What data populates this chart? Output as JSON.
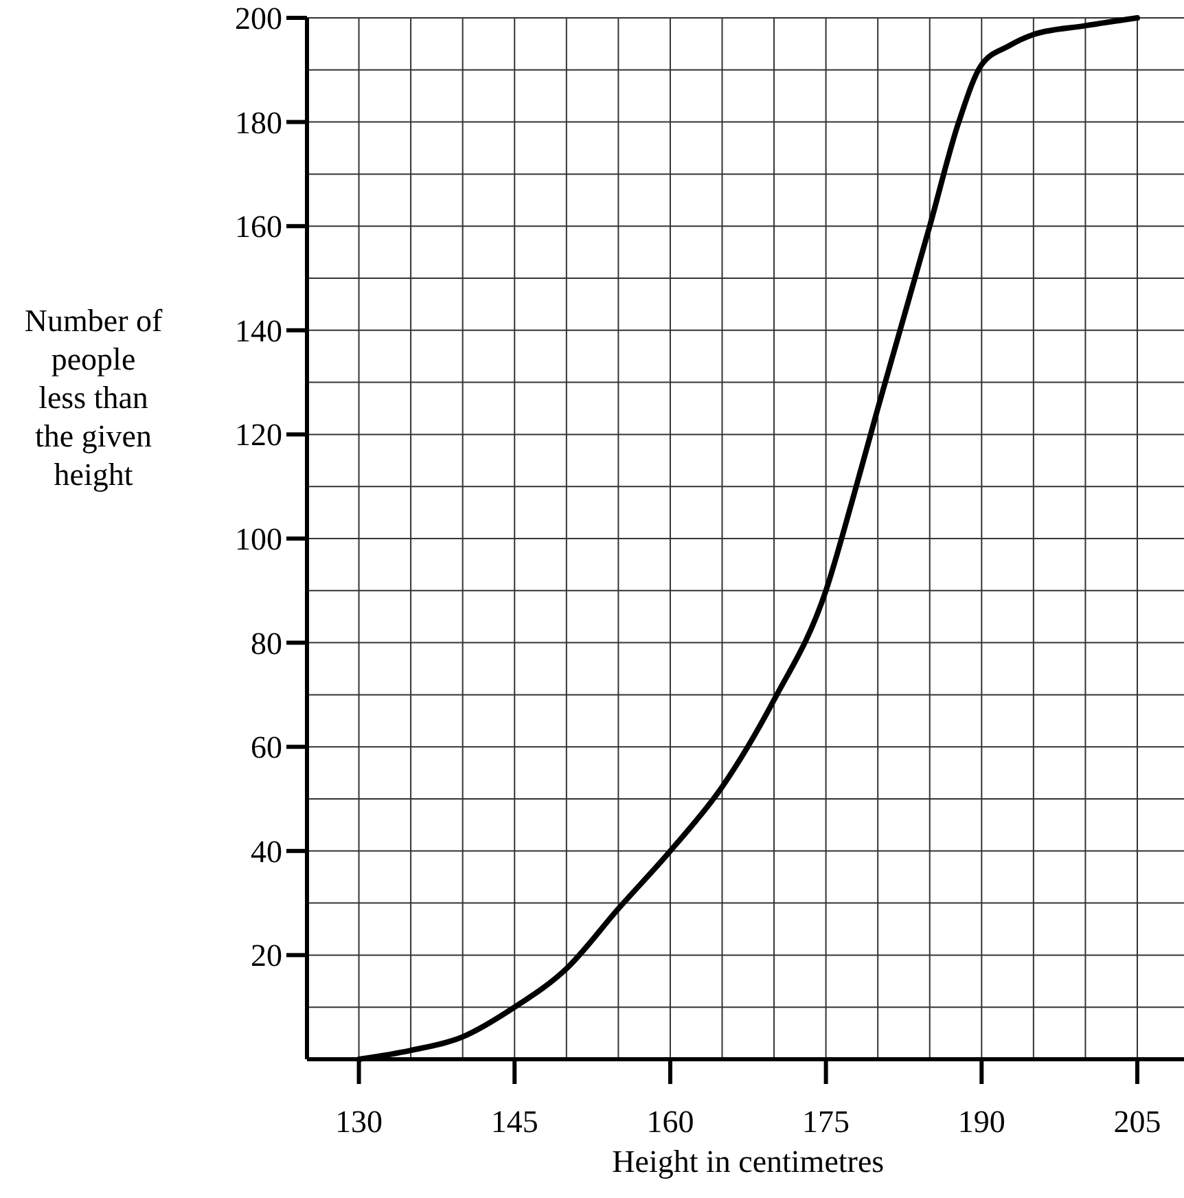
{
  "chart_data": {
    "type": "line",
    "xlabel": "Height in centimetres",
    "ylabel": "Number of people less than the given height",
    "x": [
      130,
      135,
      140,
      145,
      150,
      155,
      160,
      165,
      170,
      175,
      177.5,
      180,
      182,
      185,
      187.8,
      190,
      192.6,
      195,
      200,
      205
    ],
    "series": [
      {
        "color": "#000000",
        "values": [
          0,
          1.7,
          4.3,
          10,
          17.4,
          28.9,
          40,
          52.3,
          69,
          90,
          107,
          125,
          139,
          160,
          180,
          191,
          194.6,
          196.8,
          198.5,
          200
        ]
      }
    ],
    "xlim": [
      125,
      209.5
    ],
    "xticks": [
      130,
      {
        "value": 135,
        "label": null
      },
      {
        "value": 140,
        "label": null
      },
      145,
      {
        "value": 150,
        "label": null
      },
      {
        "value": 155,
        "label": null
      },
      160,
      {
        "value": 165,
        "label": null
      },
      {
        "value": 170,
        "label": null
      },
      175,
      {
        "value": 180,
        "label": null
      },
      {
        "value": 185,
        "label": null
      },
      190,
      {
        "value": 195,
        "label": null
      },
      {
        "value": 200,
        "label": null
      },
      205
    ],
    "ylim": [
      0,
      200
    ],
    "yticks": [
      {
        "value": 10,
        "label": null
      },
      20,
      {
        "value": 30,
        "label": null
      },
      40,
      {
        "value": 50,
        "label": null
      },
      60,
      {
        "value": 70,
        "label": null
      },
      80,
      {
        "value": 90,
        "label": null
      },
      100,
      {
        "value": 110,
        "label": null
      },
      120,
      {
        "value": 130,
        "label": null
      },
      140,
      {
        "value": 150,
        "label": null
      },
      160,
      {
        "value": 170,
        "label": null
      },
      180,
      {
        "value": 190,
        "label": null
      },
      200
    ],
    "grid": true,
    "marker": "none",
    "line_style": "solid"
  }
}
